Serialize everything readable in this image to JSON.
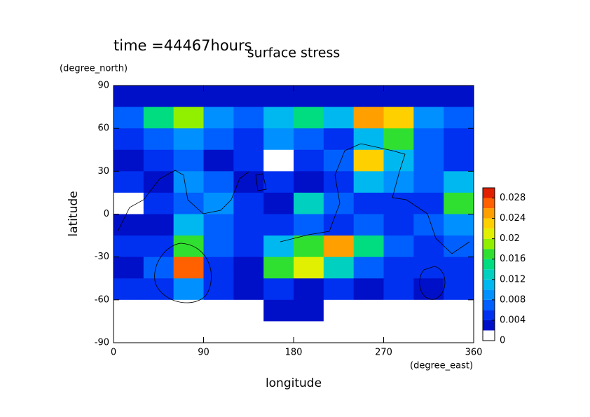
{
  "chart_data": {
    "type": "contour",
    "title": "surface stress",
    "subtitle": "time =44467hours",
    "ylabel": "latitude",
    "yunit": "(degree_north)",
    "xlabel": "longitude",
    "xunit": "(degree_east)",
    "xlim": [
      0,
      360
    ],
    "ylim": [
      -90,
      90
    ],
    "xticks": [
      0,
      90,
      180,
      270,
      360
    ],
    "yticks": [
      -90,
      -60,
      -30,
      0,
      30,
      60,
      90
    ],
    "x_edges": [
      0,
      30,
      60,
      90,
      120,
      150,
      180,
      210,
      240,
      270,
      300,
      330,
      360
    ],
    "y_edges": [
      90,
      75,
      60,
      45,
      30,
      15,
      0,
      -15,
      -30,
      -45,
      -60,
      -75,
      -90
    ],
    "z": [
      [
        0.002,
        0.002,
        0.002,
        0.002,
        0.002,
        0.002,
        0.002,
        0.002,
        0.002,
        0.002,
        0.002,
        0.002
      ],
      [
        0.006,
        0.014,
        0.018,
        0.008,
        0.006,
        0.01,
        0.014,
        0.01,
        0.024,
        0.022,
        0.008,
        0.006
      ],
      [
        0.004,
        0.006,
        0.008,
        0.006,
        0.005,
        0.008,
        0.006,
        0.005,
        0.01,
        0.016,
        0.006,
        0.004
      ],
      [
        0.003,
        0.004,
        0.006,
        0.003,
        0.005,
        0.001,
        0.004,
        0.006,
        0.022,
        0.01,
        0.006,
        0.004
      ],
      [
        0.004,
        0.003,
        0.008,
        0.006,
        0.002,
        0.004,
        0.003,
        0.004,
        0.01,
        0.008,
        0.006,
        0.01
      ],
      [
        0.001,
        0.004,
        0.006,
        0.008,
        0.004,
        0.002,
        0.012,
        0.006,
        0.004,
        0.004,
        0.004,
        0.016
      ],
      [
        0.002,
        0.003,
        0.01,
        0.006,
        0.004,
        0.004,
        0.006,
        0.004,
        0.006,
        0.004,
        0.006,
        0.008
      ],
      [
        0.004,
        0.004,
        0.016,
        0.006,
        0.005,
        0.01,
        0.016,
        0.024,
        0.014,
        0.006,
        0.004,
        0.006
      ],
      [
        0.003,
        0.006,
        0.026,
        0.004,
        0.003,
        0.016,
        0.02,
        0.012,
        0.006,
        0.004,
        0.005,
        0.004
      ],
      [
        0.004,
        0.004,
        0.008,
        0.004,
        0.003,
        0.004,
        0.003,
        0.004,
        0.003,
        0.004,
        0.003,
        0.004
      ],
      [
        0.001,
        0.001,
        0.001,
        0.001,
        0.001,
        0.002,
        0.002,
        0.001,
        0.001,
        0.001,
        0.001,
        0.001
      ],
      [
        0,
        0,
        0,
        0,
        0,
        0,
        0,
        0,
        0,
        0,
        0,
        0
      ]
    ],
    "levels": [
      0,
      0.002,
      0.004,
      0.006,
      0.008,
      0.01,
      0.012,
      0.014,
      0.016,
      0.018,
      0.02,
      0.022,
      0.024,
      0.026,
      0.028,
      0.03
    ],
    "colors": [
      "#ffffff",
      "#0010c8",
      "#0030f0",
      "#0060ff",
      "#0090ff",
      "#00b8f0",
      "#00d0c0",
      "#00dc80",
      "#30e030",
      "#90f000",
      "#e0f000",
      "#ffd000",
      "#ffa000",
      "#ff6000",
      "#e02000"
    ],
    "clim": [
      0,
      0.03
    ],
    "cticks": [
      0,
      0.004,
      0.008,
      0.012,
      0.016,
      0.02,
      0.024,
      0.028
    ]
  }
}
